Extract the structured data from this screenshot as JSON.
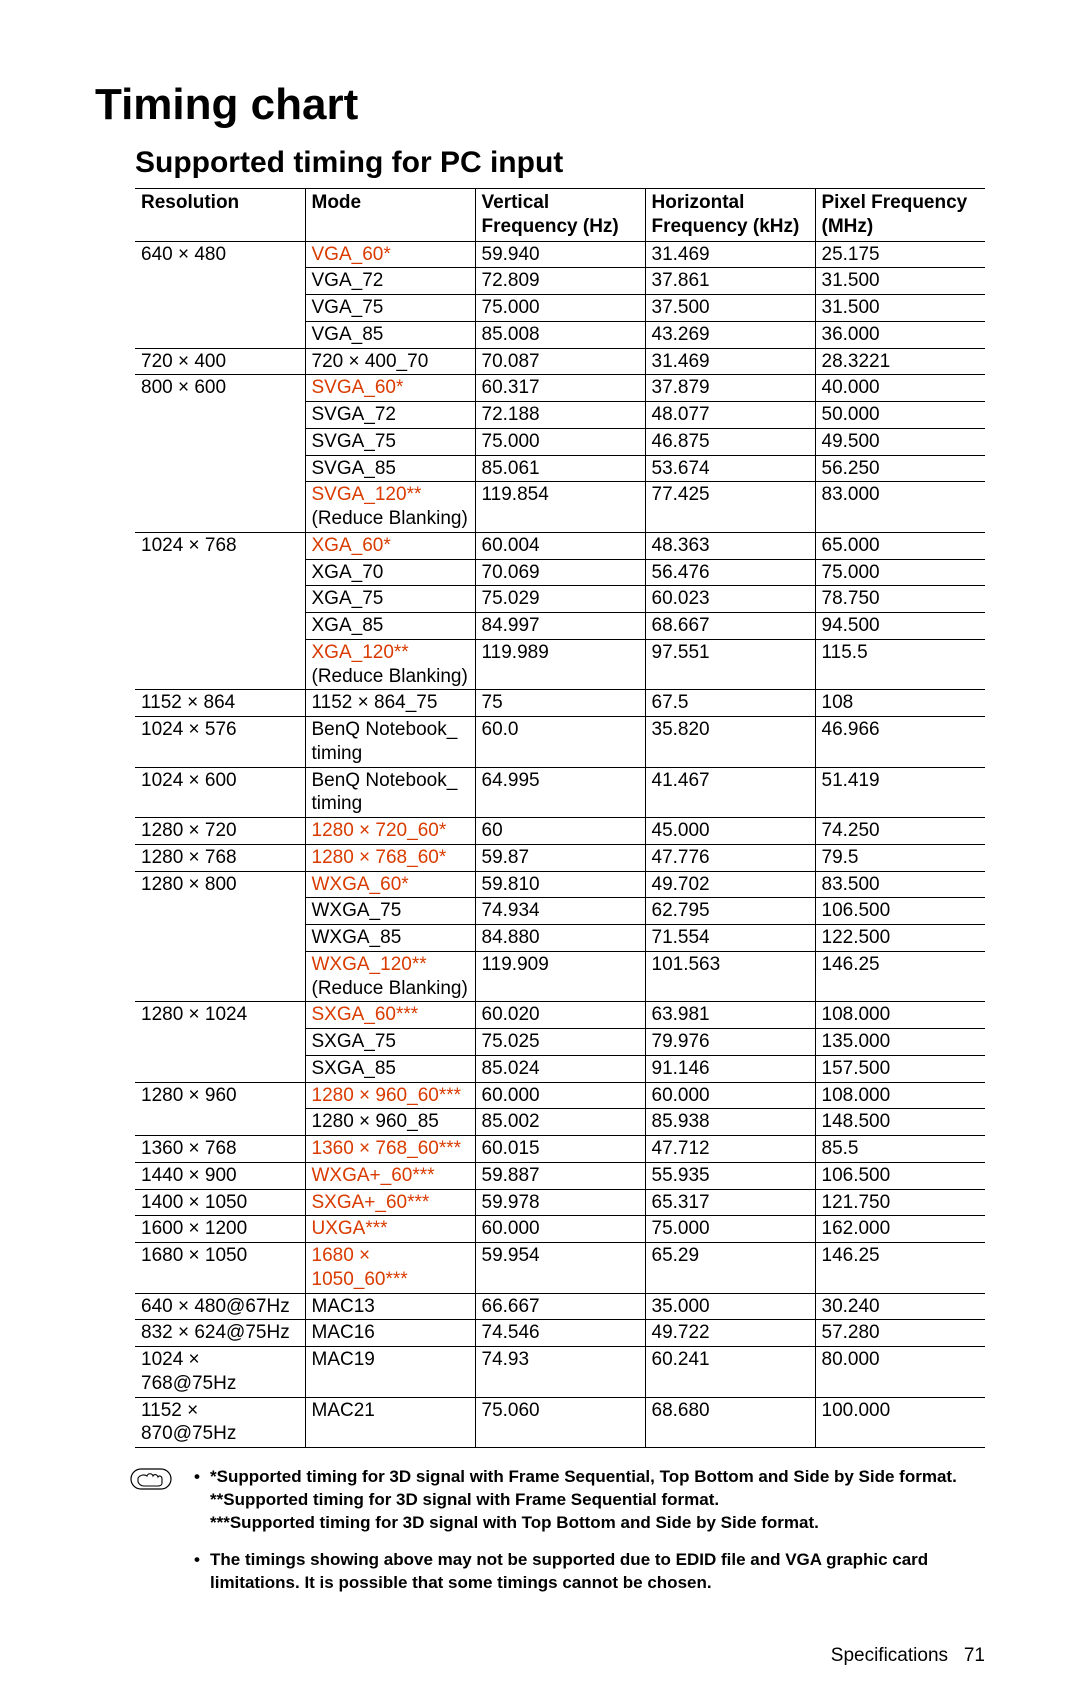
{
  "title": "Timing chart",
  "subtitle": "Supported timing for PC input",
  "columns": [
    "Resolution",
    "Mode",
    "Vertical Frequency (Hz)",
    "Horizontal Frequency (kHz)",
    "Pixel Frequency (MHz)"
  ],
  "rows": [
    {
      "res": "640 × 480",
      "mode": "VGA_60*",
      "hl": true,
      "v": "59.940",
      "h": "31.469",
      "p": "25.175",
      "newres": true
    },
    {
      "res": "",
      "mode": "VGA_72",
      "hl": false,
      "v": "72.809",
      "h": "37.861",
      "p": "31.500",
      "newres": false
    },
    {
      "res": "",
      "mode": "VGA_75",
      "hl": false,
      "v": "75.000",
      "h": "37.500",
      "p": "31.500",
      "newres": false
    },
    {
      "res": "",
      "mode": "VGA_85",
      "hl": false,
      "v": "85.008",
      "h": "43.269",
      "p": "36.000",
      "newres": false
    },
    {
      "res": "720 × 400",
      "mode": "720 × 400_70",
      "hl": false,
      "v": "70.087",
      "h": "31.469",
      "p": "28.3221",
      "newres": true
    },
    {
      "res": "800 × 600",
      "mode": "SVGA_60*",
      "hl": true,
      "v": "60.317",
      "h": "37.879",
      "p": "40.000",
      "newres": true
    },
    {
      "res": "",
      "mode": "SVGA_72",
      "hl": false,
      "v": "72.188",
      "h": "48.077",
      "p": "50.000",
      "newres": false
    },
    {
      "res": "",
      "mode": "SVGA_75",
      "hl": false,
      "v": "75.000",
      "h": "46.875",
      "p": "49.500",
      "newres": false
    },
    {
      "res": "",
      "mode": "SVGA_85",
      "hl": false,
      "v": "85.061",
      "h": "53.674",
      "p": "56.250",
      "newres": false
    },
    {
      "res": "",
      "mode": "SVGA_120** (Reduce Blanking)",
      "hl": true,
      "hl_part": "SVGA_120**",
      "rest": " (Reduce Blanking)",
      "v": "119.854",
      "h": "77.425",
      "p": "83.000",
      "newres": false
    },
    {
      "res": "1024 × 768",
      "mode": "XGA_60*",
      "hl": true,
      "v": "60.004",
      "h": "48.363",
      "p": "65.000",
      "newres": true
    },
    {
      "res": "",
      "mode": "XGA_70",
      "hl": false,
      "v": "70.069",
      "h": "56.476",
      "p": "75.000",
      "newres": false
    },
    {
      "res": "",
      "mode": "XGA_75",
      "hl": false,
      "v": "75.029",
      "h": "60.023",
      "p": "78.750",
      "newres": false
    },
    {
      "res": "",
      "mode": "XGA_85",
      "hl": false,
      "v": "84.997",
      "h": "68.667",
      "p": "94.500",
      "newres": false
    },
    {
      "res": "",
      "mode": "XGA_120** (Reduce Blanking)",
      "hl": true,
      "hl_part": "XGA_120**",
      "rest": " (Reduce Blanking)",
      "v": "119.989",
      "h": "97.551",
      "p": "115.5",
      "newres": false
    },
    {
      "res": "1152 × 864",
      "mode": "1152 × 864_75",
      "hl": false,
      "v": "75",
      "h": "67.5",
      "p": "108",
      "newres": true
    },
    {
      "res": "1024 × 576",
      "mode": "BenQ Notebook_ timing",
      "hl": false,
      "v": "60.0",
      "h": "35.820",
      "p": "46.966",
      "newres": true
    },
    {
      "res": "1024 × 600",
      "mode": "BenQ Notebook_ timing",
      "hl": false,
      "v": "64.995",
      "h": "41.467",
      "p": "51.419",
      "newres": true
    },
    {
      "res": "1280 × 720",
      "mode": "1280 × 720_60*",
      "hl": true,
      "v": "60",
      "h": "45.000",
      "p": "74.250",
      "newres": true
    },
    {
      "res": "1280 × 768",
      "mode": "1280 × 768_60*",
      "hl": true,
      "v": "59.87",
      "h": "47.776",
      "p": "79.5",
      "newres": true
    },
    {
      "res": "1280 × 800",
      "mode": "WXGA_60*",
      "hl": true,
      "v": "59.810",
      "h": "49.702",
      "p": "83.500",
      "newres": true
    },
    {
      "res": "",
      "mode": "WXGA_75",
      "hl": false,
      "v": "74.934",
      "h": "62.795",
      "p": "106.500",
      "newres": false
    },
    {
      "res": "",
      "mode": "WXGA_85",
      "hl": false,
      "v": "84.880",
      "h": "71.554",
      "p": "122.500",
      "newres": false
    },
    {
      "res": "",
      "mode": "WXGA_120** (Reduce Blanking)",
      "hl": true,
      "hl_part": "WXGA_120**",
      "rest": " (Reduce Blanking)",
      "v": "119.909",
      "h": "101.563",
      "p": "146.25",
      "newres": false
    },
    {
      "res": "1280 × 1024",
      "mode": "SXGA_60***",
      "hl": true,
      "v": "60.020",
      "h": "63.981",
      "p": "108.000",
      "newres": true
    },
    {
      "res": "",
      "mode": "SXGA_75",
      "hl": false,
      "v": "75.025",
      "h": "79.976",
      "p": "135.000",
      "newres": false
    },
    {
      "res": "",
      "mode": "SXGA_85",
      "hl": false,
      "v": "85.024",
      "h": "91.146",
      "p": "157.500",
      "newres": false
    },
    {
      "res": "1280 × 960",
      "mode": "1280 × 960_60***",
      "hl": true,
      "v": "60.000",
      "h": "60.000",
      "p": "108.000",
      "newres": true
    },
    {
      "res": "",
      "mode": "1280 × 960_85",
      "hl": false,
      "v": "85.002",
      "h": "85.938",
      "p": "148.500",
      "newres": false
    },
    {
      "res": "1360 × 768",
      "mode": "1360 × 768_60***",
      "hl": true,
      "v": "60.015",
      "h": "47.712",
      "p": "85.5",
      "newres": true
    },
    {
      "res": "1440 × 900",
      "mode": "WXGA+_60***",
      "hl": true,
      "v": "59.887",
      "h": "55.935",
      "p": "106.500",
      "newres": true
    },
    {
      "res": "1400 × 1050",
      "mode": "SXGA+_60***",
      "hl": true,
      "v": "59.978",
      "h": "65.317",
      "p": "121.750",
      "newres": true
    },
    {
      "res": "1600 × 1200",
      "mode": "UXGA***",
      "hl": true,
      "v": "60.000",
      "h": "75.000",
      "p": "162.000",
      "newres": true
    },
    {
      "res": "1680 × 1050",
      "mode": "1680 × 1050_60***",
      "hl": true,
      "v": "59.954",
      "h": "65.29",
      "p": "146.25",
      "newres": true
    },
    {
      "res": "640 × 480@67Hz",
      "mode": "MAC13",
      "hl": false,
      "v": "66.667",
      "h": "35.000",
      "p": "30.240",
      "newres": true
    },
    {
      "res": "832 × 624@75Hz",
      "mode": "MAC16",
      "hl": false,
      "v": "74.546",
      "h": "49.722",
      "p": "57.280",
      "newres": true
    },
    {
      "res": "1024 × 768@75Hz",
      "mode": "MAC19",
      "hl": false,
      "v": "74.93",
      "h": "60.241",
      "p": "80.000",
      "newres": true
    },
    {
      "res": "1152 × 870@75Hz",
      "mode": "MAC21",
      "hl": false,
      "v": "75.060",
      "h": "68.680",
      "p": "100.000",
      "newres": true
    }
  ],
  "footnotes": [
    "*Supported timing for 3D signal with Frame Sequential, Top Bottom and Side by Side format.",
    "**Supported timing for 3D signal with Frame Sequential format.",
    "***Supported timing for 3D signal with Top Bottom and Side by Side format."
  ],
  "footnote2": "The timings showing above may not be supported due to EDID file and VGA graphic card limitations. It is possible that some timings cannot be chosen.",
  "pagefoot_label": "Specifications",
  "page_number": "71"
}
